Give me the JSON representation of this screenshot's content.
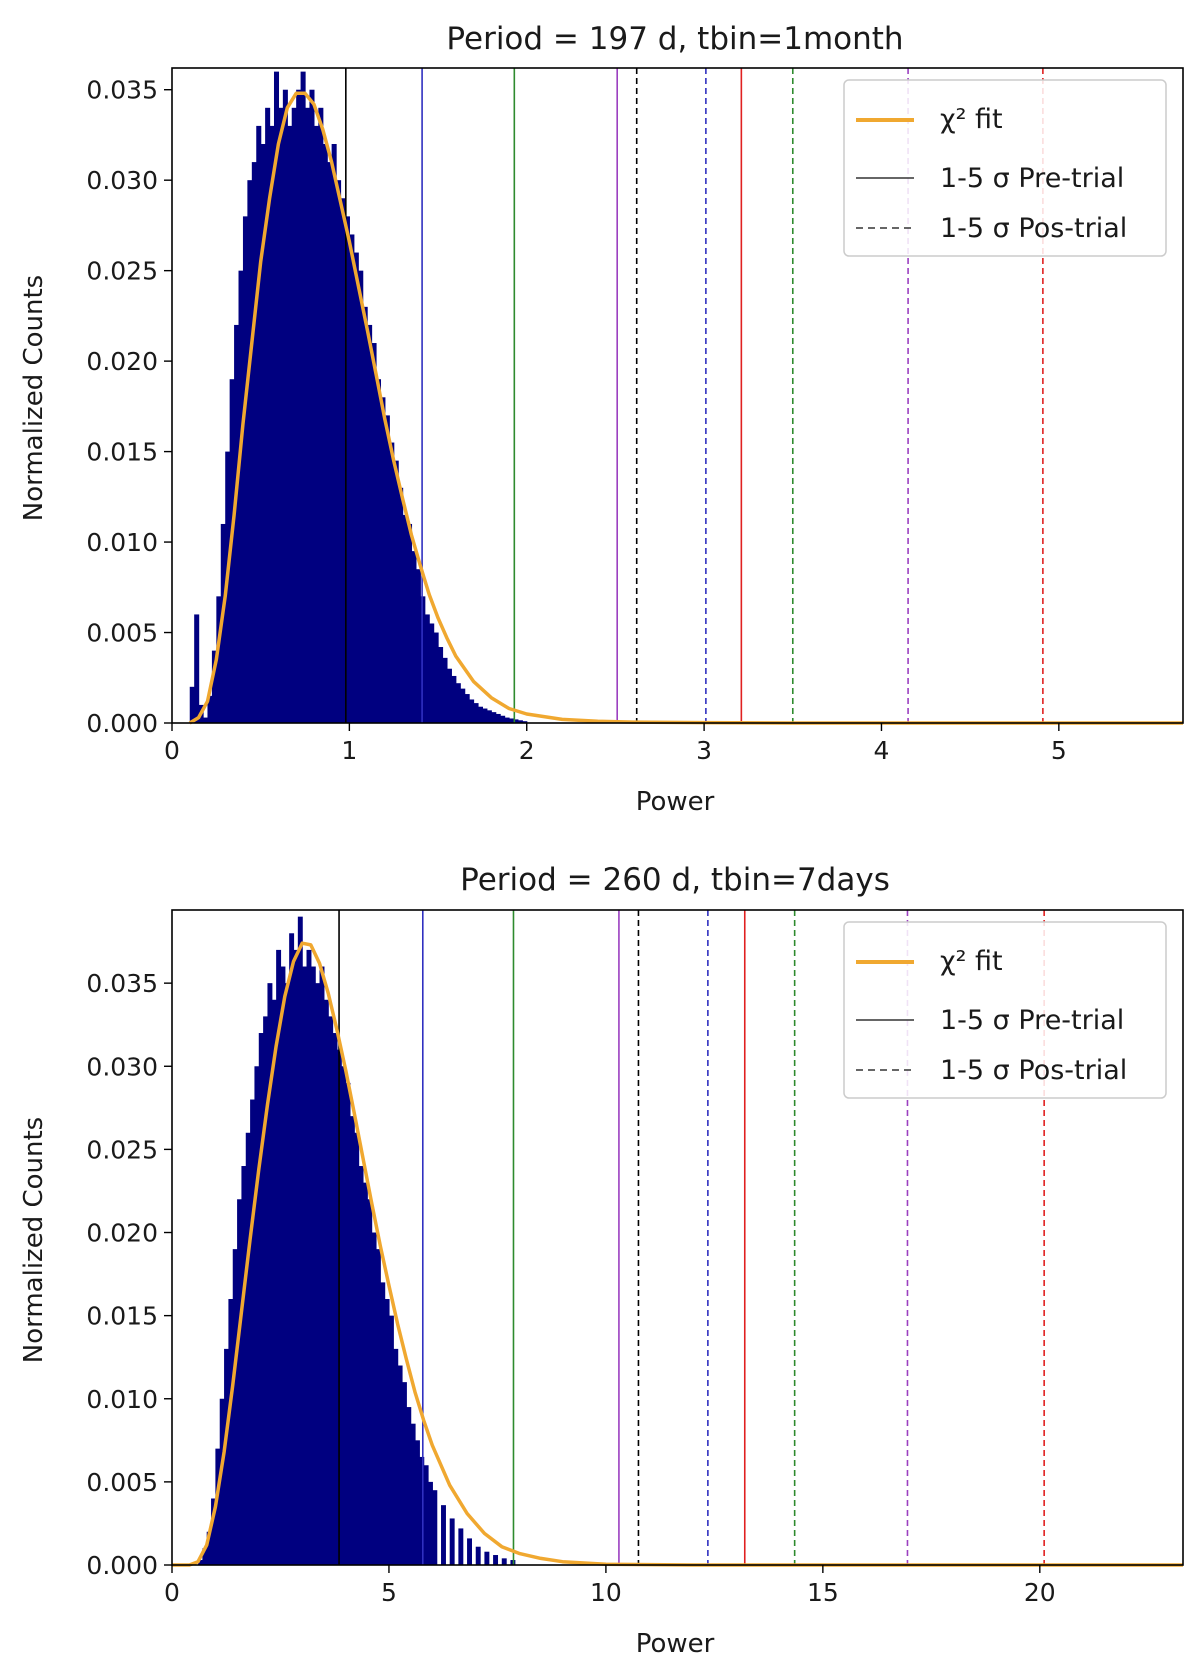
{
  "chart_data": [
    {
      "type": "bar",
      "title": "Period = 197 d, tbin=1month",
      "xlabel": "Power",
      "ylabel": "Normalized Counts",
      "xlim": [
        0,
        5.7
      ],
      "ylim": [
        0,
        0.0362
      ],
      "xticks": [
        0,
        1,
        2,
        3,
        4,
        5
      ],
      "xtick_labels": [
        "0",
        "1",
        "2",
        "3",
        "4",
        "5"
      ],
      "yticks": [
        0.0,
        0.005,
        0.01,
        0.015,
        0.02,
        0.025,
        0.03,
        0.035
      ],
      "ytick_labels": [
        "0.000",
        "0.005",
        "0.010",
        "0.015",
        "0.020",
        "0.025",
        "0.030",
        "0.035"
      ],
      "histogram": {
        "color": "#000080",
        "bin_width": 0.025,
        "bin_starts": [
          0.1,
          0.125,
          0.15,
          0.175,
          0.2,
          0.225,
          0.25,
          0.275,
          0.3,
          0.325,
          0.35,
          0.375,
          0.4,
          0.425,
          0.45,
          0.475,
          0.5,
          0.525,
          0.55,
          0.575,
          0.6,
          0.625,
          0.65,
          0.675,
          0.7,
          0.725,
          0.75,
          0.775,
          0.8,
          0.825,
          0.85,
          0.875,
          0.9,
          0.925,
          0.95,
          0.975,
          1.0,
          1.025,
          1.05,
          1.075,
          1.1,
          1.125,
          1.15,
          1.175,
          1.2,
          1.225,
          1.25,
          1.275,
          1.3,
          1.325,
          1.35,
          1.375,
          1.4,
          1.425,
          1.45,
          1.475,
          1.5,
          1.525,
          1.55,
          1.575,
          1.6,
          1.625,
          1.65,
          1.675,
          1.7,
          1.725,
          1.75,
          1.775,
          1.8,
          1.825,
          1.85,
          1.875,
          1.9,
          1.925,
          1.95,
          1.975
        ],
        "values": [
          0.002,
          0.006,
          0.001,
          0.0003,
          0.0015,
          0.004,
          0.007,
          0.011,
          0.015,
          0.019,
          0.022,
          0.025,
          0.028,
          0.03,
          0.031,
          0.033,
          0.032,
          0.034,
          0.033,
          0.036,
          0.034,
          0.035,
          0.033,
          0.034,
          0.035,
          0.036,
          0.034,
          0.035,
          0.033,
          0.034,
          0.032,
          0.031,
          0.032,
          0.03,
          0.029,
          0.028,
          0.027,
          0.026,
          0.025,
          0.023,
          0.022,
          0.021,
          0.019,
          0.018,
          0.017,
          0.0155,
          0.0145,
          0.013,
          0.0115,
          0.011,
          0.0095,
          0.0085,
          0.007,
          0.006,
          0.0055,
          0.005,
          0.0042,
          0.0036,
          0.003,
          0.0026,
          0.0022,
          0.0019,
          0.0016,
          0.0013,
          0.0011,
          0.0009,
          0.0008,
          0.0007,
          0.0006,
          0.0005,
          0.0004,
          0.0003,
          0.00025,
          0.0002,
          0.00015,
          0.0001
        ]
      },
      "fit": {
        "name": "χ² fit",
        "color": "#f0a830",
        "x": [
          0.1,
          0.15,
          0.2,
          0.25,
          0.3,
          0.35,
          0.4,
          0.45,
          0.5,
          0.55,
          0.6,
          0.65,
          0.7,
          0.75,
          0.8,
          0.85,
          0.9,
          0.95,
          1.0,
          1.05,
          1.1,
          1.15,
          1.2,
          1.25,
          1.3,
          1.35,
          1.4,
          1.45,
          1.5,
          1.55,
          1.6,
          1.7,
          1.8,
          1.9,
          2.0,
          2.2,
          2.4,
          2.6,
          3.0,
          3.5,
          4.0,
          5.0,
          5.7
        ],
        "y": [
          0.0,
          0.0003,
          0.0012,
          0.0035,
          0.007,
          0.0115,
          0.0165,
          0.021,
          0.0255,
          0.029,
          0.032,
          0.034,
          0.0348,
          0.0348,
          0.0342,
          0.0328,
          0.031,
          0.0288,
          0.0266,
          0.0242,
          0.0218,
          0.0193,
          0.0168,
          0.0145,
          0.0124,
          0.0104,
          0.0087,
          0.0071,
          0.0058,
          0.0047,
          0.0037,
          0.0023,
          0.0014,
          0.0008,
          0.0005,
          0.0002,
          0.0001,
          5e-05,
          2e-05,
          0.0,
          0.0,
          0.0,
          0.0
        ]
      },
      "pre_trial_lines": [
        {
          "x": 0.98,
          "color": "#000000"
        },
        {
          "x": 1.41,
          "color": "#3030c0"
        },
        {
          "x": 1.93,
          "color": "#2e8b2e"
        },
        {
          "x": 2.51,
          "color": "#9b3fc0"
        },
        {
          "x": 3.21,
          "color": "#e02020"
        }
      ],
      "post_trial_lines": [
        {
          "x": 2.62,
          "color": "#000000"
        },
        {
          "x": 3.01,
          "color": "#3030c0"
        },
        {
          "x": 3.5,
          "color": "#2e8b2e"
        },
        {
          "x": 4.15,
          "color": "#9b3fc0"
        },
        {
          "x": 4.91,
          "color": "#e02020"
        }
      ],
      "legend": {
        "placement": "upper-right",
        "entries": [
          "χ² fit",
          "1-5 σ Pre-trial",
          "1-5 σ Pos-trial"
        ]
      }
    },
    {
      "type": "bar",
      "title": "Period = 260 d, tbin=7days",
      "xlabel": "Power",
      "ylabel": "Normalized Counts",
      "xlim": [
        0,
        23.3
      ],
      "ylim": [
        0,
        0.0394
      ],
      "xticks": [
        0,
        5,
        10,
        15,
        20
      ],
      "xtick_labels": [
        "0",
        "5",
        "10",
        "15",
        "20"
      ],
      "yticks": [
        0.0,
        0.005,
        0.01,
        0.015,
        0.02,
        0.025,
        0.03,
        0.035
      ],
      "ytick_labels": [
        "0.000",
        "0.005",
        "0.010",
        "0.015",
        "0.020",
        "0.025",
        "0.030",
        "0.035"
      ],
      "histogram": {
        "color": "#000080",
        "bin_width": 0.1,
        "bin_starts": [
          0.6,
          0.7,
          0.8,
          0.9,
          1.0,
          1.1,
          1.2,
          1.3,
          1.4,
          1.5,
          1.6,
          1.7,
          1.8,
          1.9,
          2.0,
          2.1,
          2.2,
          2.3,
          2.4,
          2.5,
          2.6,
          2.7,
          2.8,
          2.9,
          3.0,
          3.1,
          3.2,
          3.3,
          3.4,
          3.5,
          3.6,
          3.7,
          3.8,
          3.9,
          4.0,
          4.1,
          4.2,
          4.3,
          4.4,
          4.5,
          4.6,
          4.7,
          4.8,
          4.9,
          5.0,
          5.1,
          5.2,
          5.3,
          5.4,
          5.5,
          5.6,
          5.7,
          5.8,
          5.9,
          6.0,
          6.2,
          6.4,
          6.6,
          6.8,
          7.0,
          7.2,
          7.4,
          7.6,
          7.8
        ],
        "values": [
          0.0003,
          0.001,
          0.002,
          0.004,
          0.007,
          0.01,
          0.013,
          0.016,
          0.019,
          0.022,
          0.024,
          0.026,
          0.028,
          0.03,
          0.032,
          0.033,
          0.035,
          0.034,
          0.037,
          0.036,
          0.035,
          0.038,
          0.037,
          0.039,
          0.036,
          0.037,
          0.036,
          0.035,
          0.036,
          0.034,
          0.033,
          0.032,
          0.031,
          0.03,
          0.029,
          0.027,
          0.026,
          0.024,
          0.023,
          0.022,
          0.02,
          0.019,
          0.017,
          0.016,
          0.015,
          0.013,
          0.012,
          0.011,
          0.0095,
          0.0085,
          0.0075,
          0.0065,
          0.006,
          0.005,
          0.0045,
          0.0036,
          0.0028,
          0.0022,
          0.0016,
          0.0011,
          0.0008,
          0.0006,
          0.0004,
          0.0003
        ]
      },
      "fit": {
        "name": "χ² fit",
        "color": "#f0a830",
        "x": [
          0.0,
          0.4,
          0.6,
          0.8,
          1.0,
          1.2,
          1.4,
          1.6,
          1.8,
          2.0,
          2.2,
          2.4,
          2.6,
          2.8,
          3.0,
          3.2,
          3.4,
          3.6,
          3.8,
          4.0,
          4.2,
          4.4,
          4.6,
          4.8,
          5.0,
          5.2,
          5.4,
          5.6,
          5.8,
          6.0,
          6.4,
          6.8,
          7.2,
          7.6,
          8.0,
          8.5,
          9.0,
          10.0,
          12.0,
          15.0,
          23.3
        ],
        "y": [
          0.0,
          0.0,
          0.0002,
          0.0012,
          0.0035,
          0.0068,
          0.0108,
          0.0152,
          0.0196,
          0.0238,
          0.0277,
          0.0312,
          0.0342,
          0.0363,
          0.0374,
          0.0373,
          0.0362,
          0.0344,
          0.0322,
          0.0298,
          0.0272,
          0.0245,
          0.0218,
          0.0192,
          0.0168,
          0.0145,
          0.0124,
          0.0104,
          0.0087,
          0.0072,
          0.0048,
          0.0031,
          0.0019,
          0.0011,
          0.0007,
          0.0004,
          0.0002,
          5e-05,
          0.0,
          0.0,
          0.0
        ]
      },
      "pre_trial_lines": [
        {
          "x": 3.85,
          "color": "#000000"
        },
        {
          "x": 5.78,
          "color": "#3030c0"
        },
        {
          "x": 7.87,
          "color": "#2e8b2e"
        },
        {
          "x": 10.3,
          "color": "#9b3fc0"
        },
        {
          "x": 13.2,
          "color": "#e02020"
        }
      ],
      "post_trial_lines": [
        {
          "x": 10.75,
          "color": "#000000"
        },
        {
          "x": 12.35,
          "color": "#3030c0"
        },
        {
          "x": 14.35,
          "color": "#2e8b2e"
        },
        {
          "x": 16.95,
          "color": "#9b3fc0"
        },
        {
          "x": 20.1,
          "color": "#e02020"
        }
      ],
      "legend": {
        "placement": "upper-right",
        "entries": [
          "χ² fit",
          "1-5 σ Pre-trial",
          "1-5 σ Pos-trial"
        ]
      }
    }
  ]
}
